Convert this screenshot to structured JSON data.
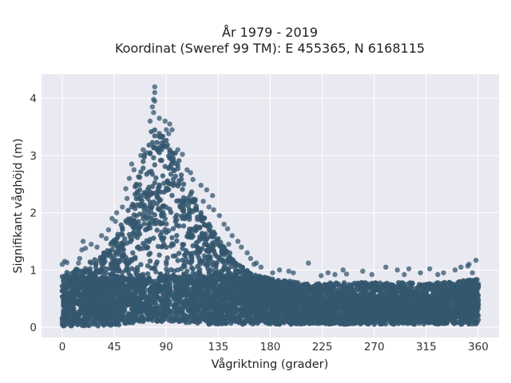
{
  "chart_data": {
    "type": "scatter",
    "title": "År 1979 - 2019",
    "subtitle": "Koordinat (Sweref 99 TM): E 455365, N 6168115",
    "xlabel": "Vågriktning (grader)",
    "ylabel": "Signifikant våghöjd (m)",
    "xlim": [
      -18,
      378
    ],
    "ylim": [
      -0.18,
      4.42
    ],
    "xticks": [
      0,
      45,
      90,
      135,
      180,
      225,
      270,
      315,
      360
    ],
    "yticks": [
      0,
      1,
      2,
      3,
      4
    ],
    "grid": true,
    "marker_color": "#34576f",
    "background_color": "#e9e9f1",
    "grid_color": "#ffffff",
    "envelope": {
      "x": [
        0,
        10,
        20,
        30,
        40,
        50,
        55,
        60,
        65,
        70,
        75,
        80,
        85,
        90,
        95,
        100,
        105,
        110,
        115,
        120,
        125,
        130,
        135,
        140,
        145,
        150,
        160,
        170,
        180,
        190,
        200,
        210,
        220,
        230,
        240,
        250,
        260,
        270,
        280,
        290,
        300,
        310,
        320,
        330,
        340,
        350,
        360
      ],
      "upper": [
        0.95,
        1.0,
        1.1,
        1.2,
        1.4,
        1.75,
        2.0,
        2.3,
        2.6,
        2.95,
        3.35,
        3.6,
        3.4,
        3.3,
        3.2,
        3.0,
        2.65,
        2.45,
        2.25,
        2.05,
        1.9,
        1.7,
        1.55,
        1.4,
        1.3,
        1.15,
        1.0,
        0.9,
        0.85,
        0.82,
        0.8,
        0.78,
        0.78,
        0.78,
        0.78,
        0.78,
        0.78,
        0.78,
        0.78,
        0.78,
        0.78,
        0.78,
        0.78,
        0.78,
        0.8,
        0.82,
        0.85
      ],
      "lower": [
        0.02,
        0.02,
        0.02,
        0.02,
        0.03,
        0.04,
        0.05,
        0.06,
        0.08,
        0.1,
        0.1,
        0.1,
        0.1,
        0.1,
        0.1,
        0.09,
        0.08,
        0.07,
        0.06,
        0.05,
        0.05,
        0.05,
        0.05,
        0.05,
        0.05,
        0.05,
        0.05,
        0.05,
        0.05,
        0.05,
        0.05,
        0.05,
        0.05,
        0.05,
        0.05,
        0.05,
        0.05,
        0.05,
        0.05,
        0.05,
        0.05,
        0.05,
        0.05,
        0.05,
        0.05,
        0.05,
        0.05
      ]
    },
    "outliers": [
      [
        80,
        4.2
      ],
      [
        80,
        4.1
      ],
      [
        79,
        3.98
      ],
      [
        80,
        3.95
      ],
      [
        78,
        3.85
      ],
      [
        79,
        3.75
      ],
      [
        84,
        3.65
      ],
      [
        76,
        3.6
      ],
      [
        89,
        3.6
      ],
      [
        93,
        3.55
      ],
      [
        95,
        3.45
      ],
      [
        90,
        3.45
      ],
      [
        92,
        3.38
      ],
      [
        70,
        3.1
      ],
      [
        73,
        3.05
      ],
      [
        100,
        3.1
      ],
      [
        104,
        3.02
      ],
      [
        68,
        3.0
      ],
      [
        60,
        2.85
      ],
      [
        62,
        2.75
      ],
      [
        108,
        2.75
      ],
      [
        113,
        2.58
      ],
      [
        111,
        2.7
      ],
      [
        120,
        2.48
      ],
      [
        125,
        2.4
      ],
      [
        130,
        2.3
      ],
      [
        58,
        2.6
      ],
      [
        55,
        2.42
      ],
      [
        56,
        2.25
      ],
      [
        52,
        2.1
      ],
      [
        122,
        2.2
      ],
      [
        127,
        2.1
      ],
      [
        131,
        2.05
      ],
      [
        136,
        1.95
      ],
      [
        140,
        1.8
      ],
      [
        143,
        1.72
      ],
      [
        147,
        1.6
      ],
      [
        152,
        1.5
      ],
      [
        155,
        1.4
      ],
      [
        160,
        1.3
      ],
      [
        163,
        1.2
      ],
      [
        166,
        1.1
      ],
      [
        172,
        1.05
      ],
      [
        188,
        1.0
      ],
      [
        200,
        0.95
      ],
      [
        213,
        1.12
      ],
      [
        230,
        0.95
      ],
      [
        243,
        1.0
      ],
      [
        246,
        0.93
      ],
      [
        260,
        0.98
      ],
      [
        280,
        1.05
      ],
      [
        290,
        1.0
      ],
      [
        300,
        1.02
      ],
      [
        310,
        0.95
      ],
      [
        318,
        1.02
      ],
      [
        330,
        0.95
      ],
      [
        340,
        1.0
      ],
      [
        345,
        1.05
      ],
      [
        351,
        1.07
      ],
      [
        352,
        1.1
      ],
      [
        358,
        1.17
      ],
      [
        355,
        0.95
      ],
      [
        2,
        1.15
      ],
      [
        4,
        1.13
      ],
      [
        0,
        1.1
      ],
      [
        15,
        1.2
      ],
      [
        17,
        1.35
      ],
      [
        18,
        1.5
      ],
      [
        20,
        1.38
      ],
      [
        25,
        1.45
      ],
      [
        30,
        1.4
      ],
      [
        34,
        1.6
      ],
      [
        40,
        1.7
      ],
      [
        43,
        1.9
      ],
      [
        46,
        1.85
      ],
      [
        47,
        2.0
      ],
      [
        38,
        1.55
      ],
      [
        12,
        1.0
      ],
      [
        14,
        1.12
      ],
      [
        144,
        1.45
      ],
      [
        168,
        1.12
      ],
      [
        182,
        0.95
      ],
      [
        196,
        0.98
      ],
      [
        224,
        0.9
      ],
      [
        236,
        0.92
      ],
      [
        268,
        0.92
      ],
      [
        296,
        0.92
      ],
      [
        325,
        0.92
      ]
    ]
  }
}
